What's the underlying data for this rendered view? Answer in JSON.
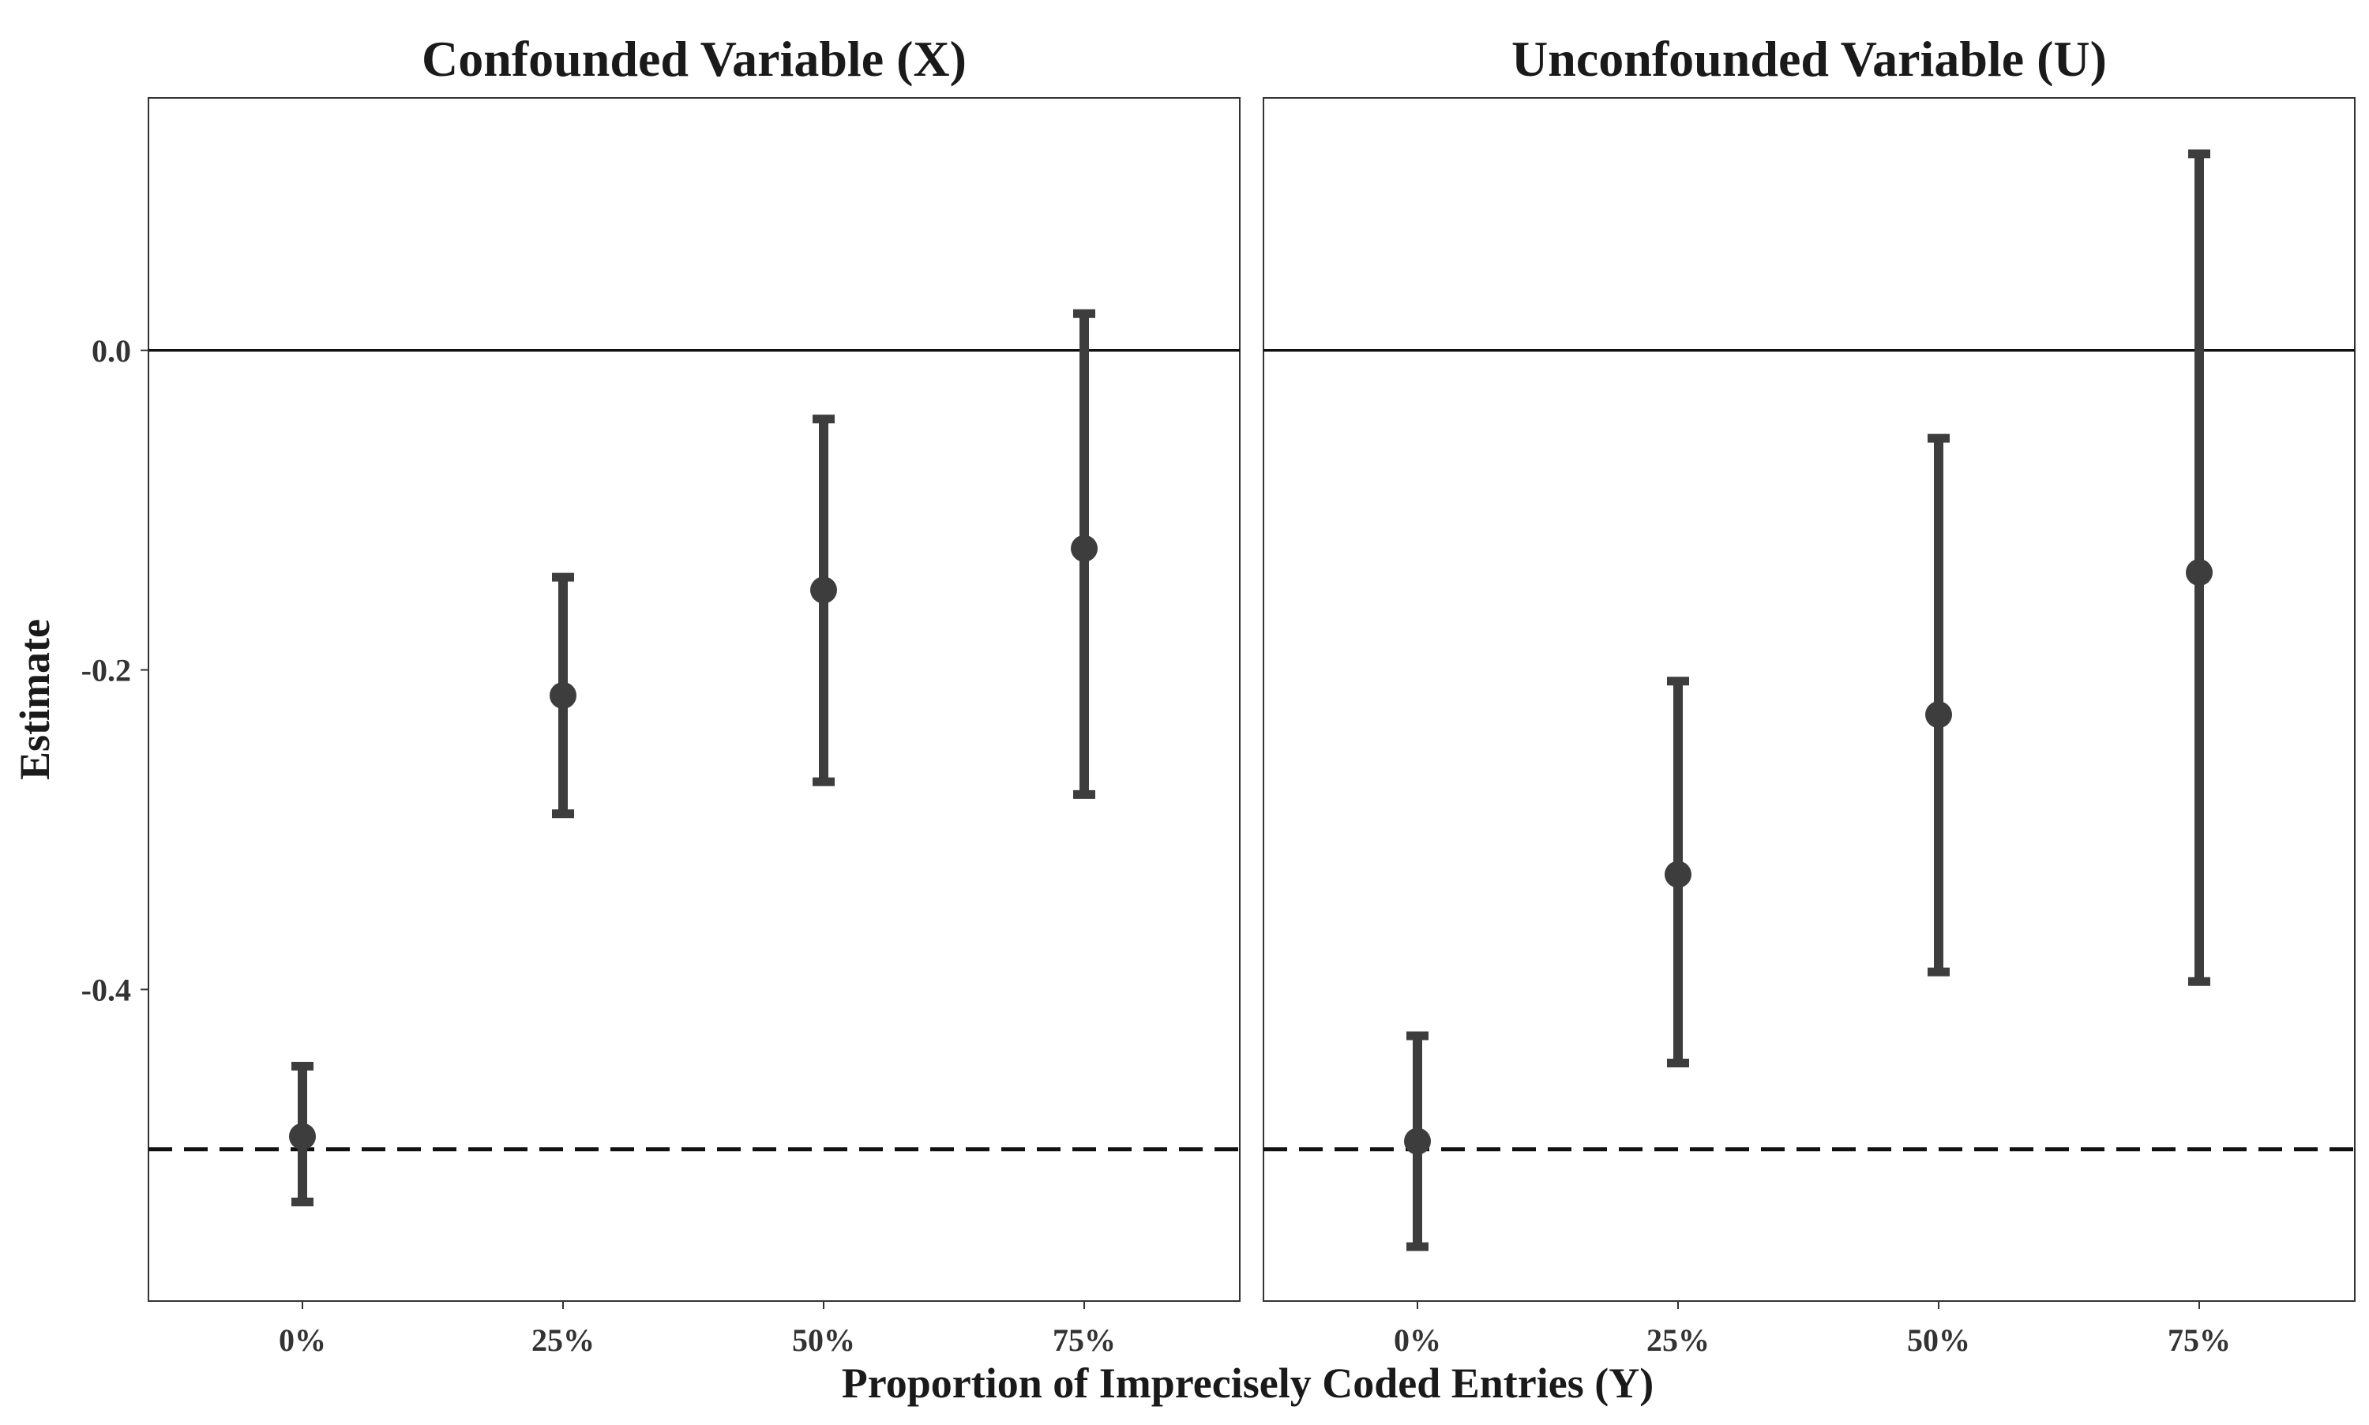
{
  "chart_data": {
    "type": "scatter",
    "subtype": "point-range (estimate with confidence interval), faceted",
    "xlabel": "Proportion of Imprecisely Coded Entries (Y)",
    "ylabel": "Estimate",
    "x_categories": [
      "0%",
      "25%",
      "50%",
      "75%"
    ],
    "ylim": [
      -0.595,
      0.158
    ],
    "y_ticks": [
      {
        "value": 0.0,
        "label": "0.0"
      },
      {
        "value": -0.2,
        "label": "-0.2"
      },
      {
        "value": -0.4,
        "label": "-0.4"
      }
    ],
    "reference_lines": [
      {
        "y": 0.0,
        "style": "solid"
      },
      {
        "y": -0.5,
        "style": "dashed"
      }
    ],
    "grid": false,
    "point_color": "#3d3d3d",
    "panels": [
      {
        "title": "Confounded Variable (X)",
        "points": [
          {
            "x": "0%",
            "estimate": -0.492,
            "lower": -0.533,
            "upper": -0.448
          },
          {
            "x": "25%",
            "estimate": -0.216,
            "lower": -0.29,
            "upper": -0.142
          },
          {
            "x": "50%",
            "estimate": -0.15,
            "lower": -0.27,
            "upper": -0.043
          },
          {
            "x": "75%",
            "estimate": -0.124,
            "lower": -0.278,
            "upper": 0.023
          }
        ]
      },
      {
        "title": "Unconfounded Variable (U)",
        "points": [
          {
            "x": "0%",
            "estimate": -0.495,
            "lower": -0.561,
            "upper": -0.429
          },
          {
            "x": "25%",
            "estimate": -0.328,
            "lower": -0.446,
            "upper": -0.207
          },
          {
            "x": "50%",
            "estimate": -0.228,
            "lower": -0.389,
            "upper": -0.055
          },
          {
            "x": "75%",
            "estimate": -0.139,
            "lower": -0.395,
            "upper": 0.123
          }
        ]
      }
    ]
  }
}
